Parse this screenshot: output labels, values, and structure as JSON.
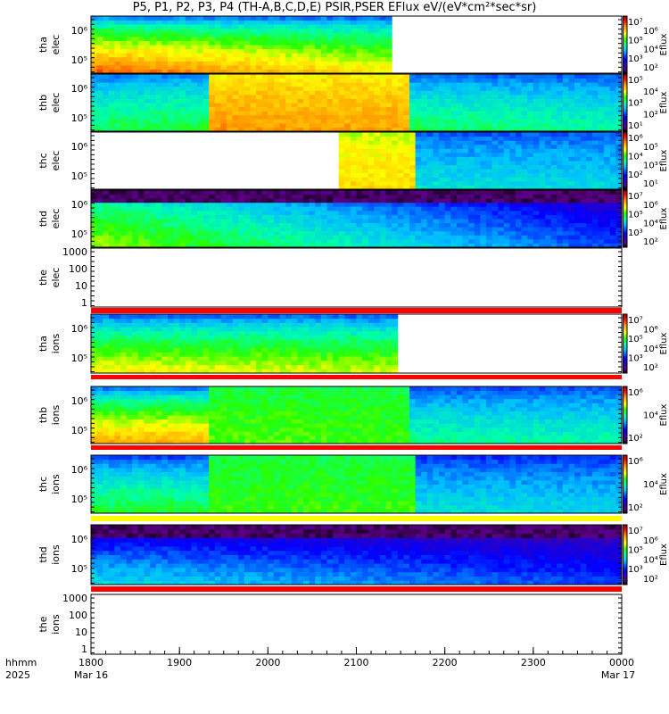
{
  "chart_data": {
    "type": "heatmap",
    "title": "P5, P1, P2, P3, P4 (TH-A,B,C,D,E) PSIR,PSER EFlux eV/(eV*cm²*sec*sr)",
    "x_range": [
      "18:00",
      "24:00"
    ],
    "x_tick_labels": [
      "1800",
      "1900",
      "2000",
      "2100",
      "2200",
      "2300",
      "0000"
    ],
    "x_axis_header": [
      "hhmm",
      "2025"
    ],
    "x_dates": {
      "start": "Mar 16",
      "end": "Mar 17"
    },
    "colorbar_label": "Eflux",
    "panels": [
      {
        "name": "tha elec",
        "label": [
          "tha",
          "elec"
        ],
        "type": "spectrogram",
        "y_ticks": [
          "10⁶",
          "10⁵"
        ],
        "colorbar_ticks": [
          "10⁷",
          "10⁶",
          "10⁵",
          "10⁴",
          "10³",
          "10²"
        ],
        "segments": [
          {
            "from": "18:00",
            "to": "21:25",
            "bottom": [
              0.88,
              0.72
            ],
            "top": [
              0.3,
              0.28
            ]
          }
        ]
      },
      {
        "name": "thb elec",
        "label": [
          "thb",
          "elec"
        ],
        "type": "spectrogram",
        "y_ticks": [
          "10⁶",
          "10⁵"
        ],
        "colorbar_ticks": [
          "10⁵",
          "10⁴",
          "10³",
          "10²",
          "10¹"
        ],
        "segments": [
          {
            "from": "18:00",
            "to": "19:20",
            "bottom": [
              0.55,
              0.58
            ],
            "top": [
              0.32,
              0.32
            ]
          },
          {
            "from": "19:20",
            "to": "21:38",
            "bottom": [
              0.82,
              0.8
            ],
            "top": [
              0.7,
              0.7
            ]
          },
          {
            "from": "21:38",
            "to": "24:00",
            "bottom": [
              0.56,
              0.5
            ],
            "top": [
              0.3,
              0.3
            ]
          }
        ]
      },
      {
        "name": "thc elec",
        "label": [
          "thc",
          "elec"
        ],
        "type": "spectrogram",
        "y_ticks": [
          "10⁶",
          "10⁵"
        ],
        "colorbar_ticks": [
          "10⁶",
          "10⁵",
          "10⁴",
          "10³",
          "10²",
          "10¹"
        ],
        "segments": [
          {
            "from": "20:48",
            "to": "21:41",
            "bottom": [
              0.74,
              0.74
            ],
            "top": [
              0.66,
              0.66
            ]
          },
          {
            "from": "21:41",
            "to": "24:00",
            "bottom": [
              0.46,
              0.44
            ],
            "top": [
              0.3,
              0.3
            ]
          }
        ]
      },
      {
        "name": "thd elec",
        "label": [
          "thd",
          "elec"
        ],
        "type": "spectrogram",
        "y_ticks": [
          "10⁶",
          "10⁵"
        ],
        "colorbar_ticks": [
          "10⁷",
          "10⁶",
          "10⁵",
          "10⁴",
          "10³",
          "10²"
        ],
        "segments": [
          {
            "from": "18:00",
            "to": "24:00",
            "bottom": [
              0.66,
              0.3
            ],
            "top": [
              0.4,
              0.08
            ],
            "dark_top": true
          }
        ]
      },
      {
        "name": "the elec",
        "label": [
          "the",
          "elec"
        ],
        "type": "line",
        "y_ticks": [
          "1000",
          "100",
          "10",
          "1"
        ],
        "bar": "#ff0000"
      },
      {
        "name": "tha ions",
        "label": [
          "tha",
          "ions"
        ],
        "type": "spectrogram",
        "y_ticks": [
          "10⁶",
          "10⁵"
        ],
        "colorbar_ticks": [
          "10⁷",
          "10⁶",
          "10⁵",
          "10⁴",
          "10³",
          "10²"
        ],
        "segments": [
          {
            "from": "18:00",
            "to": "21:28",
            "bottom": [
              0.72,
              0.68
            ],
            "top": [
              0.28,
              0.28
            ]
          }
        ],
        "bar": "#ff0000"
      },
      {
        "name": "thb ions",
        "label": [
          "thb",
          "ions"
        ],
        "type": "spectrogram",
        "y_ticks": [
          "10⁶",
          "10⁵"
        ],
        "colorbar_ticks": [
          "10⁶",
          "10⁴",
          "10²"
        ],
        "segments": [
          {
            "from": "18:00",
            "to": "19:20",
            "bottom": [
              0.8,
              0.8
            ],
            "top": [
              0.28,
              0.28
            ]
          },
          {
            "from": "19:20",
            "to": "21:38",
            "bottom": [
              0.62,
              0.6
            ],
            "top": [
              0.55,
              0.55
            ]
          },
          {
            "from": "21:38",
            "to": "24:00",
            "bottom": [
              0.52,
              0.5
            ],
            "top": [
              0.28,
              0.28
            ]
          }
        ],
        "bar": "#ff0000"
      },
      {
        "name": "thc ions",
        "label": [
          "thc",
          "ions"
        ],
        "type": "spectrogram",
        "y_ticks": [
          "10⁶",
          "10⁵"
        ],
        "colorbar_ticks": [
          "10⁶",
          "10⁴",
          "10²"
        ],
        "segments": [
          {
            "from": "18:00",
            "to": "19:19",
            "bottom": [
              0.58,
              0.58
            ],
            "top": [
              0.26,
              0.26
            ]
          },
          {
            "from": "19:19",
            "to": "21:41",
            "bottom": [
              0.6,
              0.6
            ],
            "top": [
              0.55,
              0.55
            ]
          },
          {
            "from": "21:41",
            "to": "24:00",
            "bottom": [
              0.46,
              0.44
            ],
            "top": [
              0.26,
              0.26
            ]
          }
        ],
        "bar": "#ffff00"
      },
      {
        "name": "thd ions",
        "label": [
          "thd",
          "ions"
        ],
        "type": "spectrogram",
        "y_ticks": [
          "10⁶",
          "10⁵"
        ],
        "colorbar_ticks": [
          "10⁷",
          "10⁶",
          "10⁵",
          "10⁴",
          "10³",
          "10²"
        ],
        "segments": [
          {
            "from": "18:00",
            "to": "24:00",
            "bottom": [
              0.45,
              0.3
            ],
            "top": [
              0.08,
              0.04
            ],
            "dark_top": true
          }
        ],
        "bar": "#ff0000"
      },
      {
        "name": "the ions",
        "label": [
          "the",
          "ions"
        ],
        "type": "line",
        "y_ticks": [
          "1000",
          "100",
          "10",
          "1"
        ]
      }
    ]
  }
}
